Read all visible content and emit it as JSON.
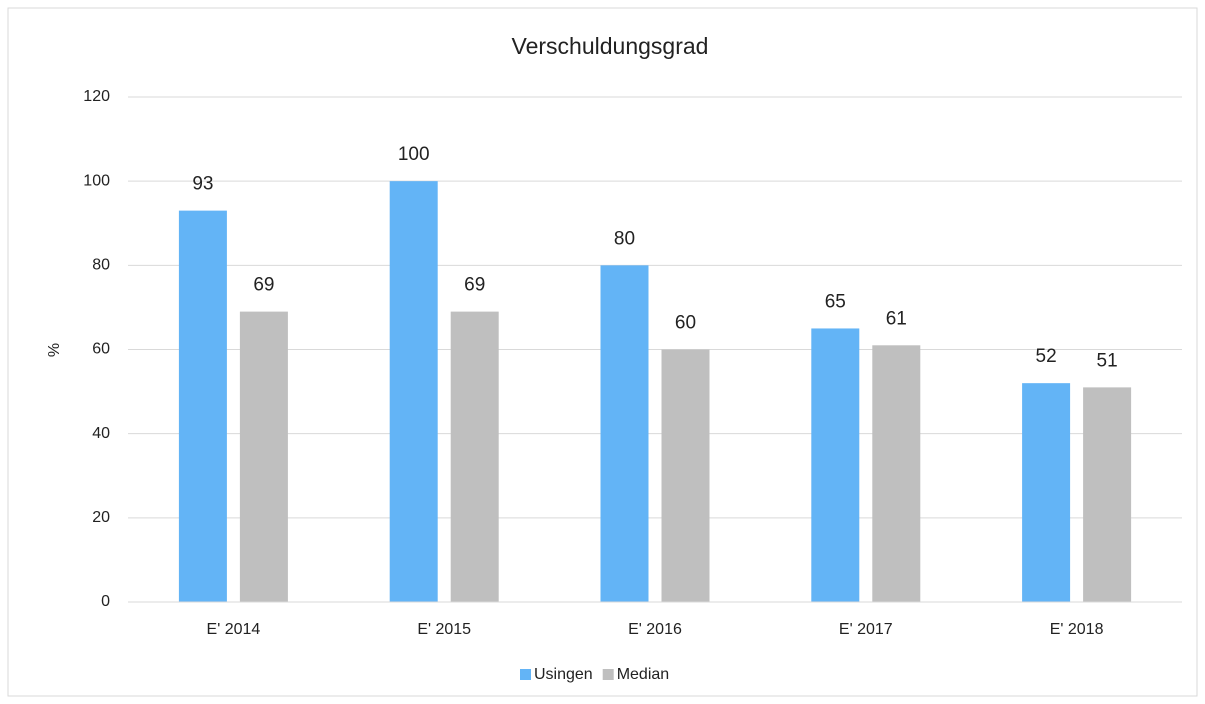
{
  "chart_data": {
    "type": "bar",
    "title": "Verschuldungsgrad",
    "y_label": "%",
    "categories": [
      "E' 2014",
      "E' 2015",
      "E' 2016",
      "E' 2017",
      "E' 2018"
    ],
    "series": [
      {
        "name": "Usingen",
        "color": "#63b4f6",
        "values": [
          93,
          100,
          80,
          65,
          52
        ]
      },
      {
        "name": "Median",
        "color": "#bfbfbf",
        "values": [
          69,
          69,
          60,
          61,
          51
        ]
      }
    ],
    "ylim": [
      0,
      120
    ],
    "yticks": [
      0,
      20,
      40,
      60,
      80,
      100,
      120
    ],
    "grid": true,
    "legend": "bottom"
  }
}
